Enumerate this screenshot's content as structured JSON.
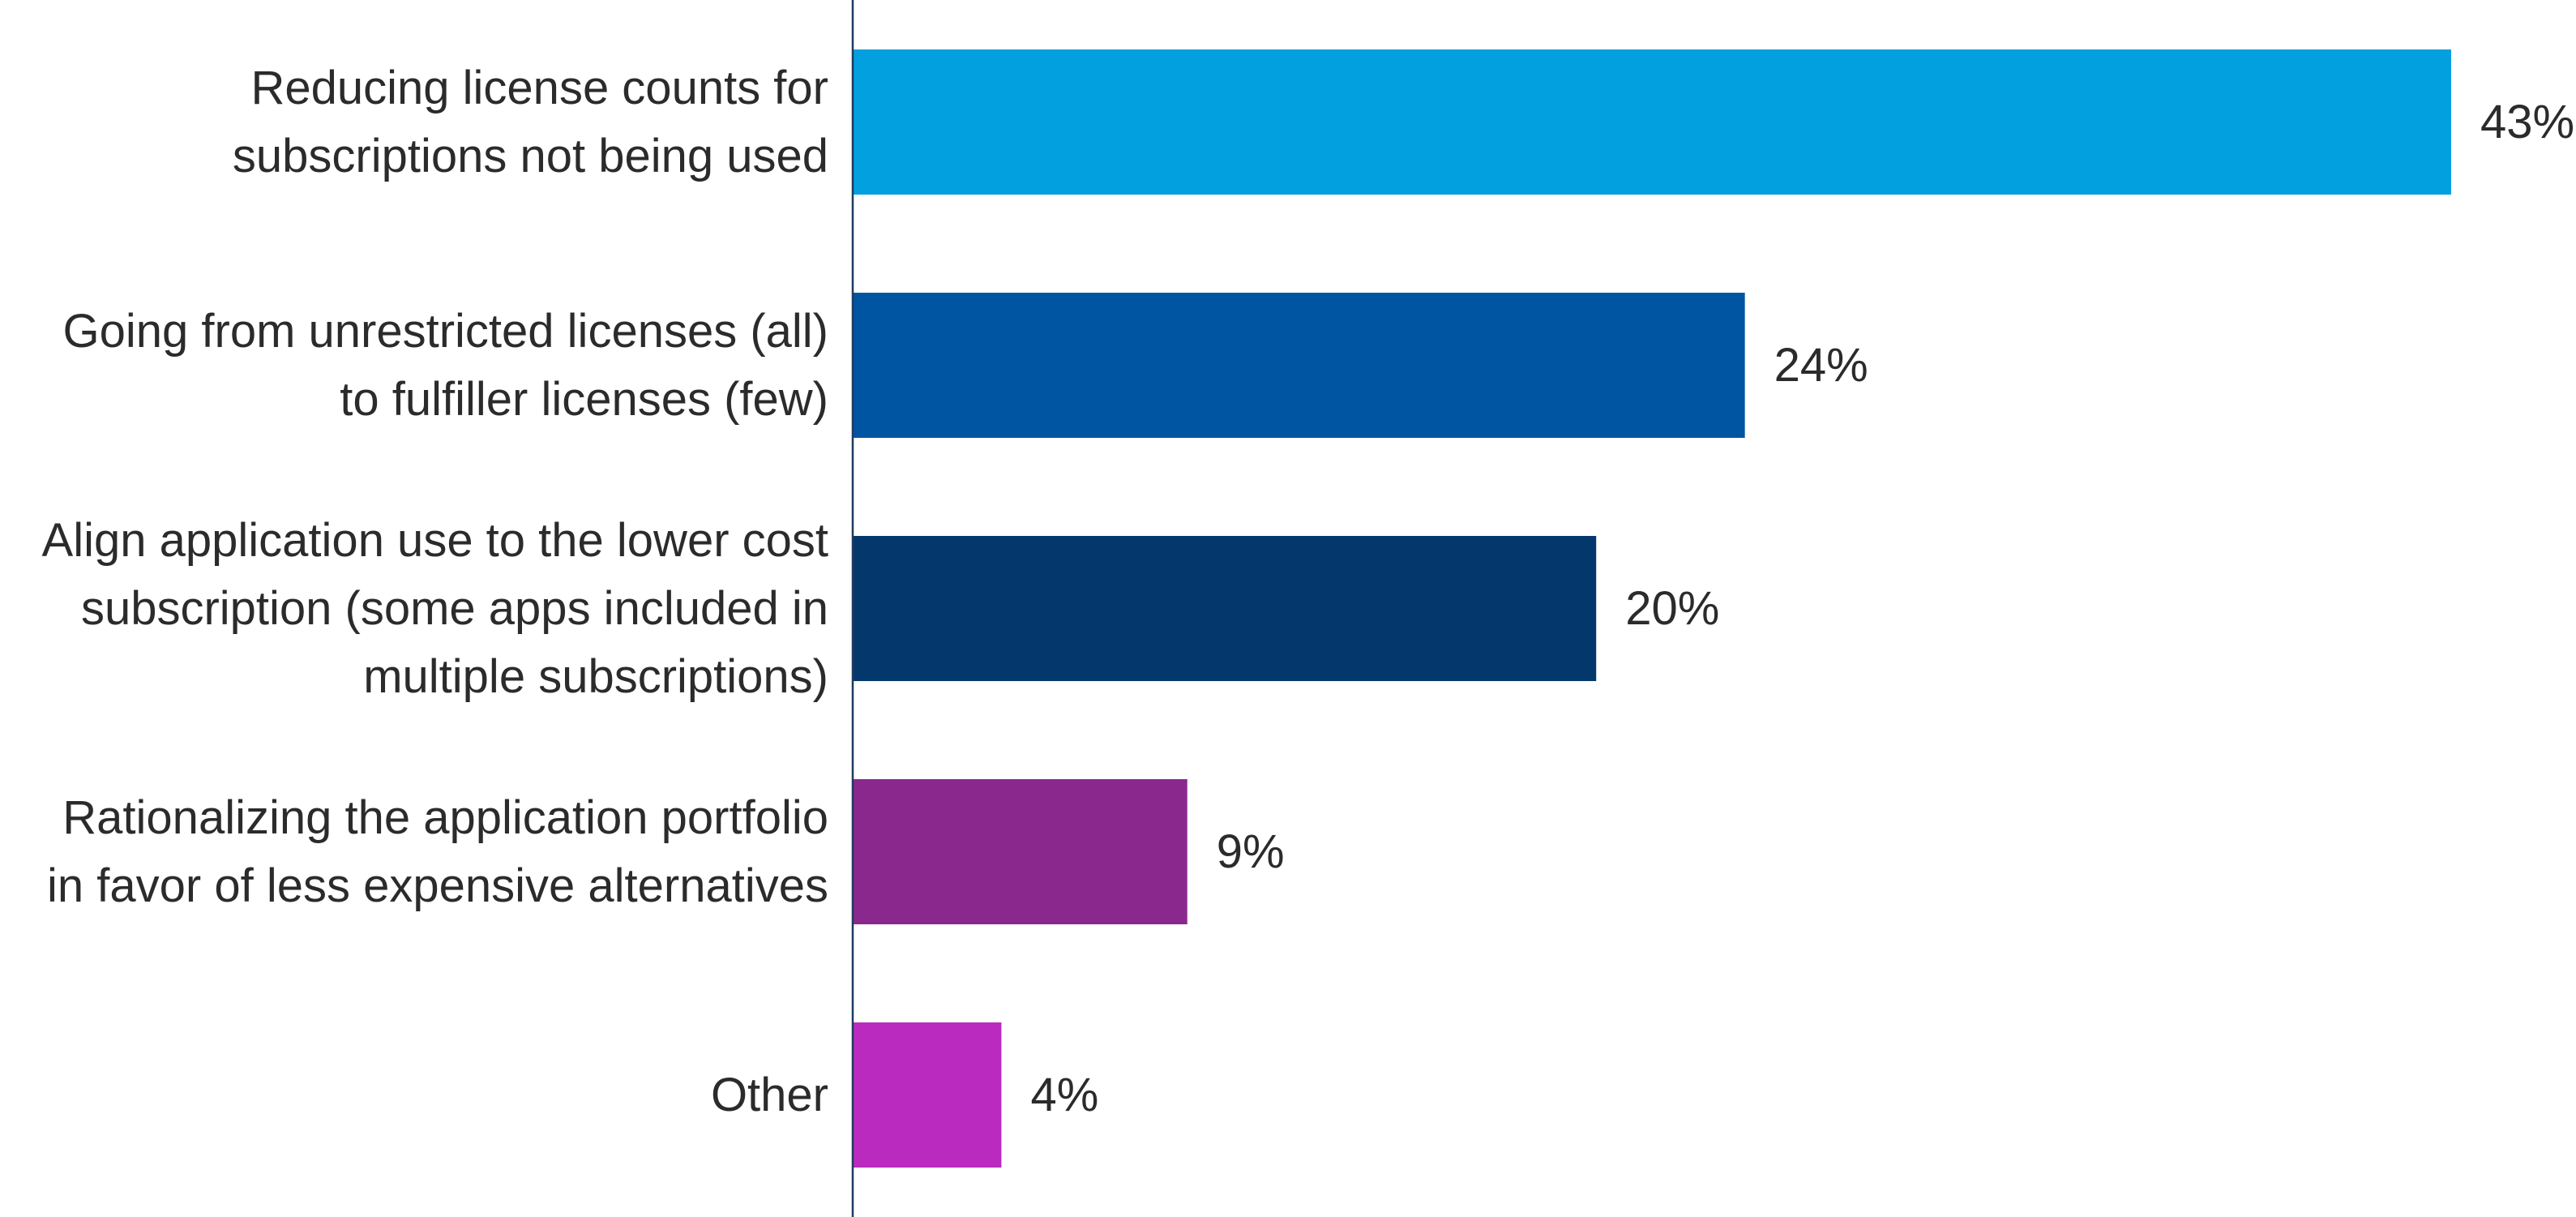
{
  "chart_data": {
    "type": "bar",
    "orientation": "horizontal",
    "title": "",
    "xlabel": "",
    "ylabel": "",
    "grid": false,
    "legend": "none",
    "xlim": [
      0,
      43
    ],
    "categories": [
      [
        "Reducing license counts for",
        "subscriptions not being used"
      ],
      [
        "Going from unrestricted licenses (all)",
        "to fulfiller licenses (few)"
      ],
      [
        "Align application use to the lower cost",
        "subscription (some apps included in",
        "multiple subscriptions)"
      ],
      [
        "Rationalizing the application portfolio",
        "in favor of less expensive alternatives"
      ],
      [
        "Other"
      ]
    ],
    "values": [
      43,
      24,
      20,
      9,
      4
    ],
    "value_labels": [
      "43%",
      "24%",
      "20%",
      "9%",
      "4%"
    ],
    "colors": [
      "#03a0e0",
      "#0055a2",
      "#04386c",
      "#8b288e",
      "#bb2abf"
    ]
  }
}
